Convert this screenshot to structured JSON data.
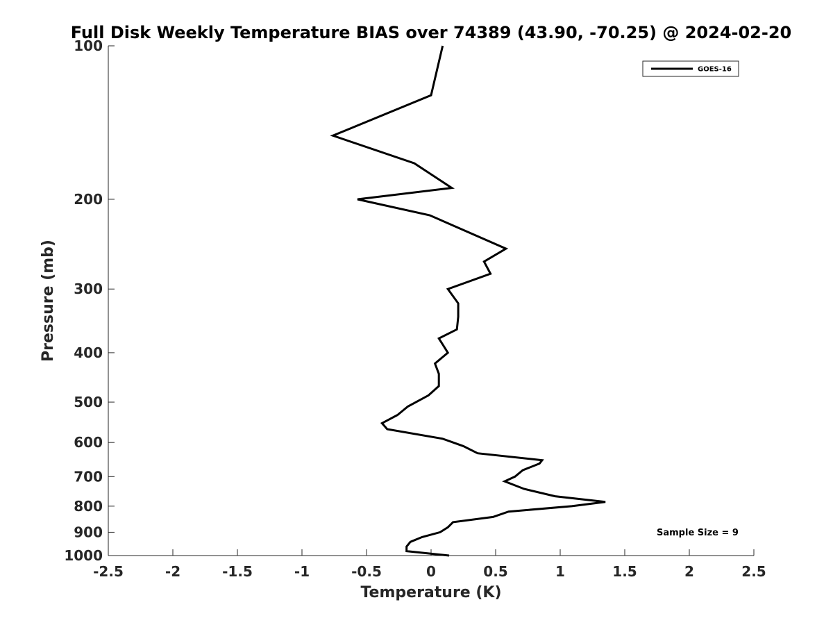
{
  "chart_data": {
    "type": "line",
    "title": "Full Disk Weekly Temperature BIAS over 74389 (43.90, -70.25) @ 2024-02-20",
    "xlabel": "Temperature (K)",
    "ylabel": "Pressure (mb)",
    "xlim": [
      -2.5,
      2.5
    ],
    "ylim": [
      100,
      1000
    ],
    "y_scale": "log",
    "y_reversed": true,
    "grid": false,
    "legend_position": "top-right",
    "x_ticks": [
      -2.5,
      -2,
      -1.5,
      -1,
      -0.5,
      0,
      0.5,
      1,
      1.5,
      2,
      2.5
    ],
    "x_tick_labels": [
      "-2.5",
      "-2",
      "-1.5",
      "-1",
      "-0.5",
      "0",
      "0.5",
      "1",
      "1.5",
      "2",
      "2.5"
    ],
    "y_ticks": [
      100,
      200,
      300,
      400,
      500,
      600,
      700,
      800,
      900,
      1000
    ],
    "y_tick_labels": [
      "100",
      "200",
      "300",
      "400",
      "500",
      "600",
      "700",
      "800",
      "900",
      "1000"
    ],
    "series": [
      {
        "name": "GOES-16",
        "color": "#000000",
        "points": [
          {
            "x": 0.09,
            "p": 100
          },
          {
            "x": 0.0,
            "p": 125
          },
          {
            "x": -0.76,
            "p": 150
          },
          {
            "x": -0.13,
            "p": 170
          },
          {
            "x": 0.16,
            "p": 190
          },
          {
            "x": -0.57,
            "p": 200
          },
          {
            "x": -0.01,
            "p": 215
          },
          {
            "x": 0.58,
            "p": 250
          },
          {
            "x": 0.41,
            "p": 265
          },
          {
            "x": 0.46,
            "p": 280
          },
          {
            "x": 0.13,
            "p": 300
          },
          {
            "x": 0.21,
            "p": 320
          },
          {
            "x": 0.21,
            "p": 340
          },
          {
            "x": 0.2,
            "p": 360
          },
          {
            "x": 0.06,
            "p": 375
          },
          {
            "x": 0.13,
            "p": 400
          },
          {
            "x": 0.03,
            "p": 420
          },
          {
            "x": 0.06,
            "p": 440
          },
          {
            "x": 0.06,
            "p": 465
          },
          {
            "x": -0.02,
            "p": 485
          },
          {
            "x": -0.18,
            "p": 510
          },
          {
            "x": -0.26,
            "p": 530
          },
          {
            "x": -0.38,
            "p": 550
          },
          {
            "x": -0.34,
            "p": 565
          },
          {
            "x": 0.09,
            "p": 590
          },
          {
            "x": 0.25,
            "p": 610
          },
          {
            "x": 0.36,
            "p": 630
          },
          {
            "x": 0.86,
            "p": 650
          },
          {
            "x": 0.84,
            "p": 660
          },
          {
            "x": 0.71,
            "p": 680
          },
          {
            "x": 0.65,
            "p": 700
          },
          {
            "x": 0.57,
            "p": 715
          },
          {
            "x": 0.72,
            "p": 740
          },
          {
            "x": 0.96,
            "p": 765
          },
          {
            "x": 1.35,
            "p": 785
          },
          {
            "x": 1.09,
            "p": 800
          },
          {
            "x": 0.6,
            "p": 820
          },
          {
            "x": 0.48,
            "p": 840
          },
          {
            "x": 0.17,
            "p": 860
          },
          {
            "x": 0.13,
            "p": 880
          },
          {
            "x": 0.07,
            "p": 900
          },
          {
            "x": -0.07,
            "p": 920
          },
          {
            "x": -0.16,
            "p": 940
          },
          {
            "x": -0.19,
            "p": 960
          },
          {
            "x": -0.19,
            "p": 980
          },
          {
            "x": 0.14,
            "p": 1000
          }
        ]
      }
    ],
    "annotation": "Sample Size = 9"
  },
  "colors": {
    "background": "#ffffff",
    "axis": "#262626",
    "line": "#000000"
  }
}
